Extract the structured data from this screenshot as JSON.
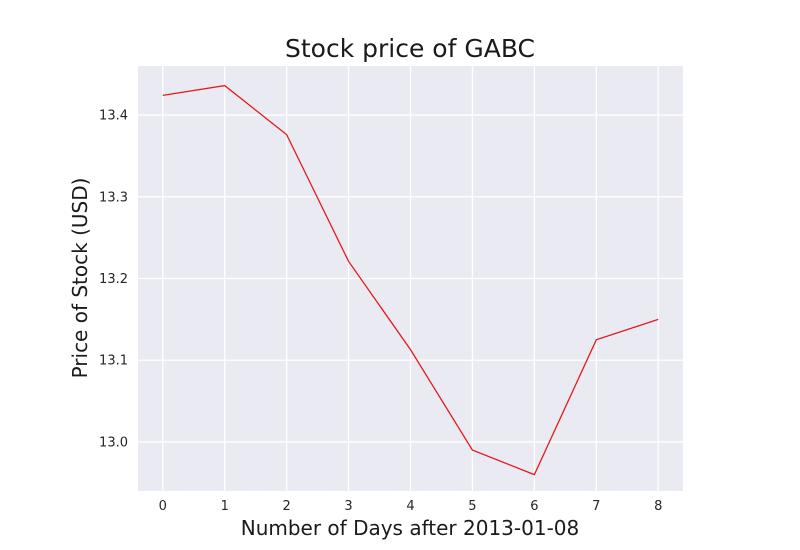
{
  "chart_data": {
    "type": "line",
    "title": "Stock price of GABC",
    "xlabel": "Number of Days after 2013-01-08",
    "ylabel": "Price of Stock (USD)",
    "x": [
      0,
      1,
      2,
      3,
      4,
      5,
      6,
      7,
      8
    ],
    "x_ticks": [
      "0",
      "1",
      "2",
      "3",
      "4",
      "5",
      "6",
      "7",
      "8"
    ],
    "y_ticks": [
      "13.0",
      "13.1",
      "13.2",
      "13.3",
      "13.4"
    ],
    "xlim": [
      -0.4,
      8.4
    ],
    "ylim": [
      12.94,
      13.46
    ],
    "series": [
      {
        "values": [
          13.424,
          13.436,
          13.376,
          13.221,
          13.113,
          12.99,
          12.96,
          13.125,
          13.15
        ],
        "color": "#e41a1c"
      }
    ],
    "grid": true,
    "legend": "none"
  },
  "colors": {
    "plot_background": "#eaeaf2",
    "grid": "#ffffff",
    "line": "#e41a1c"
  }
}
